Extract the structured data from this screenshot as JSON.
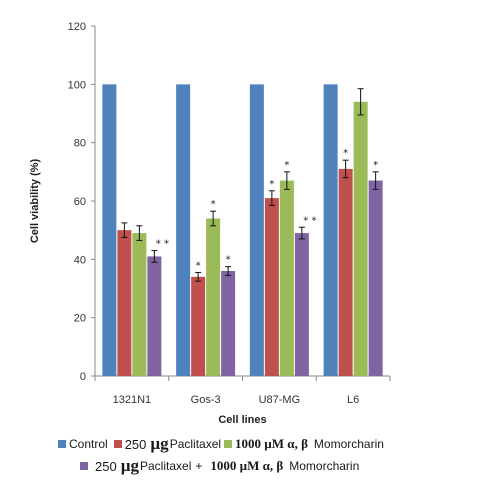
{
  "chart_data": {
    "type": "bar",
    "xlabel": "Cell lines",
    "ylabel": "Cell viability  (%)",
    "ylim": [
      0,
      120
    ],
    "yticks": [
      "0",
      "20",
      "40",
      "60",
      "80",
      "100",
      "120"
    ],
    "categories": [
      "1321N1",
      "Gos-3",
      "U87-MG",
      "L6"
    ],
    "series": [
      {
        "name": "Control",
        "color": "#4f81bd",
        "values": [
          100,
          100,
          100,
          100
        ],
        "errors": [
          0,
          0,
          0,
          0
        ],
        "marks": [
          "",
          "",
          "",
          ""
        ]
      },
      {
        "name": "250 µg Paclitaxel",
        "color": "#c0504d",
        "values": [
          50,
          34,
          61,
          71
        ],
        "errors": [
          2.5,
          1.5,
          2.5,
          3
        ],
        "marks": [
          "",
          "*",
          "*",
          "*"
        ]
      },
      {
        "name": "1000 µM α, β Momorcharin",
        "color": "#9bbb59",
        "values": [
          49,
          54,
          67,
          94
        ],
        "errors": [
          2.5,
          2.5,
          3,
          4.5
        ],
        "marks": [
          "",
          "*",
          "*",
          ""
        ]
      },
      {
        "name": "250 µg Paclitaxel + 1000 µM α, β Momorcharin",
        "color": "#8064a2",
        "values": [
          41,
          36,
          49,
          67
        ],
        "errors": [
          2,
          1.5,
          2,
          3
        ],
        "marks": [
          "* *",
          "*",
          "* *",
          "*"
        ]
      }
    ],
    "legend_position": "bottom"
  },
  "legend": {
    "control": "Control",
    "num250": "250",
    "unit_ug": "µg",
    "paclitaxel": "Paclitaxel",
    "momorcharin_dose": "1000 µM α, β",
    "momorcharin": "Momorcharin",
    "plus": "+"
  }
}
